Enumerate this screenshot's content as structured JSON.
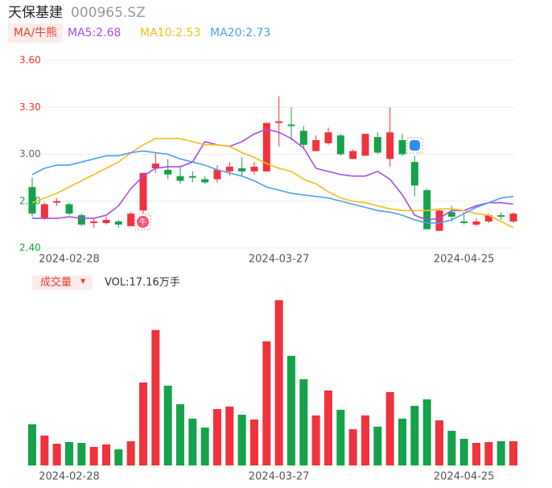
{
  "header": {
    "name": "天保基建",
    "code": "000965.SZ",
    "ma_button": "MA/牛熊",
    "volume_button": "成交量",
    "volume_arrow": "▼",
    "bull_badge": "牛"
  },
  "chart_data": [
    {
      "type": "candlestick",
      "categories": [
        null,
        null,
        null,
        "2024-02-28",
        null,
        null,
        null,
        null,
        null,
        null,
        null,
        null,
        null,
        null,
        null,
        null,
        null,
        null,
        null,
        null,
        "2024-03-27",
        null,
        null,
        null,
        null,
        null,
        null,
        null,
        null,
        null,
        null,
        null,
        null,
        null,
        null,
        "2024-04-25",
        null,
        null,
        null,
        null
      ],
      "open": [
        2.79,
        2.59,
        2.69,
        2.68,
        2.61,
        2.56,
        2.56,
        2.57,
        2.54,
        2.64,
        2.91,
        2.9,
        2.86,
        2.86,
        2.84,
        2.84,
        2.89,
        2.91,
        2.89,
        2.89,
        3.2,
        3.19,
        3.15,
        3.02,
        3.07,
        3.12,
        2.97,
        2.99,
        3.11,
        2.97,
        3.09,
        2.95,
        2.77,
        2.51,
        2.63,
        2.57,
        2.55,
        2.57,
        2.61,
        2.57
      ],
      "high": [
        2.85,
        2.69,
        2.72,
        2.69,
        2.62,
        2.59,
        2.6,
        2.58,
        2.63,
        2.88,
        3.01,
        2.97,
        2.92,
        2.89,
        2.86,
        2.93,
        2.95,
        2.98,
        2.95,
        3.2,
        3.37,
        3.3,
        3.18,
        3.12,
        3.17,
        3.13,
        3.03,
        3.13,
        3.14,
        3.3,
        3.13,
        2.99,
        2.78,
        2.65,
        2.67,
        2.63,
        2.59,
        2.62,
        2.63,
        2.63
      ],
      "low": [
        2.6,
        2.58,
        2.67,
        2.61,
        2.54,
        2.53,
        2.55,
        2.53,
        2.54,
        2.62,
        2.88,
        2.84,
        2.81,
        2.82,
        2.81,
        2.82,
        2.86,
        2.86,
        2.87,
        2.89,
        3.05,
        3.09,
        3.03,
        3.02,
        3.06,
        2.99,
        2.97,
        2.99,
        3.0,
        2.92,
        2.99,
        2.73,
        2.52,
        2.51,
        2.57,
        2.55,
        2.54,
        2.56,
        2.58,
        2.56
      ],
      "close": [
        2.62,
        2.68,
        2.7,
        2.62,
        2.55,
        2.57,
        2.58,
        2.55,
        2.62,
        2.88,
        2.94,
        2.87,
        2.83,
        2.85,
        2.82,
        2.9,
        2.92,
        2.89,
        2.92,
        3.2,
        3.21,
        3.18,
        3.06,
        3.09,
        3.14,
        3.0,
        3.02,
        3.13,
        3.01,
        3.14,
        3.0,
        2.8,
        2.52,
        2.64,
        2.6,
        2.56,
        2.57,
        2.61,
        2.6,
        2.62
      ],
      "up_color": "#f0323c",
      "down_color": "#14a24a",
      "series": [
        {
          "name": "MA5:2.68",
          "color": "#a94be8",
          "values": [
            2.59,
            2.59,
            2.59,
            2.6,
            2.59,
            2.59,
            2.61,
            2.67,
            2.78,
            2.86,
            2.91,
            2.92,
            2.92,
            2.95,
            3.08,
            3.06,
            3.05,
            3.08,
            3.13,
            3.16,
            3.14,
            3.1,
            3.04,
            2.91,
            2.89,
            2.87,
            2.86,
            2.86,
            2.89,
            2.84,
            2.74,
            2.61,
            2.58,
            2.59,
            2.64,
            2.64,
            2.67,
            2.69,
            2.69,
            2.68
          ]
        },
        {
          "name": "MA10:2.53",
          "color": "#f3bd1d",
          "values": [
            2.69,
            2.72,
            2.75,
            2.79,
            2.83,
            2.87,
            2.91,
            2.95,
            3.01,
            3.06,
            3.1,
            3.1,
            3.1,
            3.08,
            3.06,
            3.06,
            3.05,
            3.01,
            2.98,
            2.94,
            2.91,
            2.89,
            2.84,
            2.81,
            2.76,
            2.72,
            2.7,
            2.69,
            2.67,
            2.65,
            2.64,
            2.64,
            2.64,
            2.65,
            2.65,
            2.64,
            2.62,
            2.61,
            2.57,
            2.53
          ]
        },
        {
          "name": "MA20:2.73",
          "color": "#4f9ef0",
          "values": [
            2.87,
            2.91,
            2.93,
            2.93,
            2.95,
            2.97,
            2.99,
            2.99,
            3.01,
            3.02,
            3.01,
            3.0,
            2.97,
            2.95,
            2.93,
            2.9,
            2.88,
            2.86,
            2.83,
            2.79,
            2.77,
            2.75,
            2.74,
            2.73,
            2.72,
            2.7,
            2.68,
            2.66,
            2.64,
            2.63,
            2.61,
            2.58,
            2.56,
            2.56,
            2.58,
            2.62,
            2.66,
            2.69,
            2.72,
            2.73
          ]
        }
      ],
      "ylim": [
        2.4,
        3.6
      ],
      "yticks": [
        {
          "value": 3.6,
          "label": "3.60"
        },
        {
          "value": 3.3,
          "label": "3.30"
        },
        {
          "value": 3.0,
          "label": "3.00"
        },
        {
          "value": 2.7,
          "label": "2.70"
        },
        {
          "value": 2.4,
          "label": "2.40"
        }
      ],
      "ytick_colors": [
        "#f0323c",
        "#f0323c",
        "#666666",
        "#14a24a",
        "#14a24a"
      ],
      "grid": true
    },
    {
      "type": "bar",
      "legend_text": "VOL:17.16万手",
      "categories": [
        null,
        null,
        null,
        "2024-02-28",
        null,
        null,
        null,
        null,
        null,
        null,
        null,
        null,
        null,
        null,
        null,
        null,
        null,
        null,
        null,
        null,
        "2024-03-27",
        null,
        null,
        null,
        null,
        null,
        null,
        null,
        null,
        null,
        null,
        null,
        null,
        null,
        null,
        "2024-04-25",
        null,
        null,
        null,
        null
      ],
      "values": [
        29.2,
        21.2,
        15.4,
        16.6,
        16.0,
        13.2,
        14.9,
        11.4,
        17.2,
        58.9,
        96.1,
        56.6,
        43.5,
        33.2,
        26.9,
        40.0,
        41.8,
        36.0,
        32.6,
        88.1,
        117.3,
        77.8,
        61.2,
        35.5,
        53.2,
        39.5,
        25.7,
        35.5,
        27.5,
        52.1,
        33.2,
        42.3,
        46.9,
        32.0,
        24.6,
        18.9,
        16.0,
        16.6,
        17.2,
        17.16
      ],
      "ylim": [
        0,
        120
      ]
    }
  ]
}
